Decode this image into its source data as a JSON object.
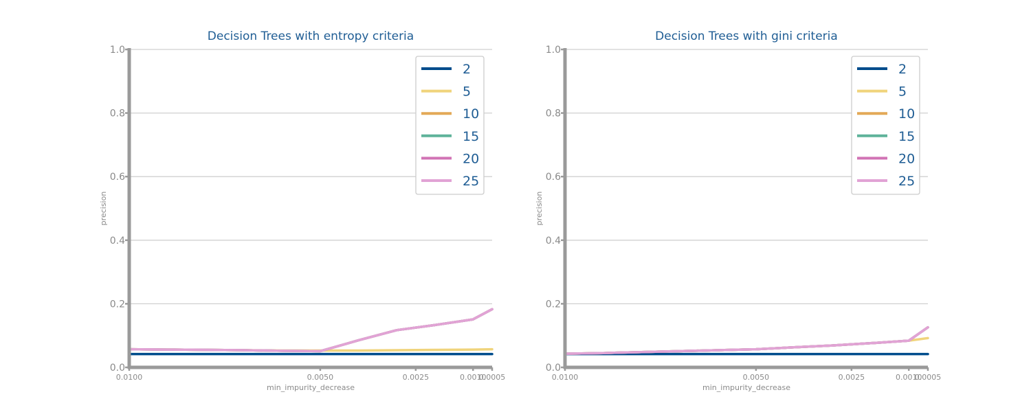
{
  "chart_data": [
    {
      "type": "line",
      "title": "Decision Trees with entropy criteria",
      "xlabel": "min_impurity_decrease",
      "ylabel": "precision",
      "ylim": [
        0,
        1
      ],
      "xlim": [
        0.01,
        0.0005
      ],
      "x_reversed": true,
      "x_tick_values": [
        0.01,
        0.005,
        0.0025,
        0.001,
        0.0005
      ],
      "x_tick_labels": [
        "0.0100",
        "0.0050",
        "0.0025",
        "0.0010",
        "0.0005"
      ],
      "y_tick_values": [
        0,
        0.2,
        0.4,
        0.6,
        0.8,
        1.0
      ],
      "y_tick_labels": [
        "0.0",
        "0.2",
        "0.4",
        "0.6",
        "0.8",
        "1.0"
      ],
      "grid": true,
      "legend_position": "top-right",
      "x": [
        0.01,
        0.009,
        0.008,
        0.007,
        0.006,
        0.005,
        0.004,
        0.003,
        0.002,
        0.001,
        0.0005
      ],
      "series": [
        {
          "name": "2",
          "color": "#004c8c",
          "values": [
            0.042,
            0.042,
            0.042,
            0.042,
            0.042,
            0.042,
            0.042,
            0.042,
            0.042,
            0.042,
            0.042
          ]
        },
        {
          "name": "5",
          "color": "#f0d47c",
          "values": [
            0.057,
            0.056,
            0.055,
            0.054,
            0.053,
            0.053,
            0.053,
            0.054,
            0.055,
            0.056,
            0.057
          ]
        },
        {
          "name": "10",
          "color": "#e3a957",
          "values": [
            0.057,
            0.056,
            0.055,
            0.054,
            0.052,
            0.051,
            0.085,
            0.117,
            0.133,
            0.151,
            0.183
          ]
        },
        {
          "name": "15",
          "color": "#5fb39a",
          "values": [
            0.057,
            0.056,
            0.055,
            0.054,
            0.052,
            0.051,
            0.085,
            0.117,
            0.133,
            0.151,
            0.183
          ]
        },
        {
          "name": "20",
          "color": "#d173b5",
          "values": [
            0.057,
            0.056,
            0.055,
            0.054,
            0.052,
            0.051,
            0.085,
            0.117,
            0.133,
            0.151,
            0.183
          ]
        },
        {
          "name": "25",
          "color": "#e1a3d5",
          "values": [
            0.057,
            0.056,
            0.055,
            0.054,
            0.052,
            0.051,
            0.085,
            0.117,
            0.133,
            0.151,
            0.183
          ]
        }
      ]
    },
    {
      "type": "line",
      "title": "Decision Trees with gini criteria",
      "xlabel": "min_impurity_decrease",
      "ylabel": "precision",
      "ylim": [
        0,
        1
      ],
      "xlim": [
        0.01,
        0.0005
      ],
      "x_reversed": true,
      "x_tick_values": [
        0.01,
        0.005,
        0.0025,
        0.001,
        0.0005
      ],
      "x_tick_labels": [
        "0.0100",
        "0.0050",
        "0.0025",
        "0.0010",
        "0.0005"
      ],
      "y_tick_values": [
        0,
        0.2,
        0.4,
        0.6,
        0.8,
        1.0
      ],
      "y_tick_labels": [
        "0.0",
        "0.2",
        "0.4",
        "0.6",
        "0.8",
        "1.0"
      ],
      "grid": true,
      "legend_position": "top-right",
      "x": [
        0.01,
        0.009,
        0.008,
        0.007,
        0.006,
        0.005,
        0.004,
        0.003,
        0.002,
        0.001,
        0.0005
      ],
      "series": [
        {
          "name": "2",
          "color": "#004c8c",
          "values": [
            0.042,
            0.042,
            0.042,
            0.042,
            0.042,
            0.042,
            0.042,
            0.042,
            0.042,
            0.042,
            0.042
          ]
        },
        {
          "name": "5",
          "color": "#f0d47c",
          "values": [
            0.043,
            0.045,
            0.048,
            0.051,
            0.054,
            0.057,
            0.063,
            0.069,
            0.076,
            0.084,
            0.092
          ]
        },
        {
          "name": "10",
          "color": "#e3a957",
          "values": [
            0.043,
            0.045,
            0.048,
            0.051,
            0.054,
            0.057,
            0.063,
            0.069,
            0.076,
            0.084,
            0.126
          ]
        },
        {
          "name": "15",
          "color": "#5fb39a",
          "values": [
            0.043,
            0.045,
            0.048,
            0.051,
            0.054,
            0.057,
            0.063,
            0.069,
            0.076,
            0.084,
            0.126
          ]
        },
        {
          "name": "20",
          "color": "#d173b5",
          "values": [
            0.043,
            0.045,
            0.048,
            0.051,
            0.054,
            0.057,
            0.063,
            0.069,
            0.076,
            0.084,
            0.126
          ]
        },
        {
          "name": "25",
          "color": "#e1a3d5",
          "values": [
            0.043,
            0.045,
            0.048,
            0.051,
            0.054,
            0.057,
            0.063,
            0.069,
            0.076,
            0.084,
            0.126
          ]
        }
      ]
    }
  ]
}
